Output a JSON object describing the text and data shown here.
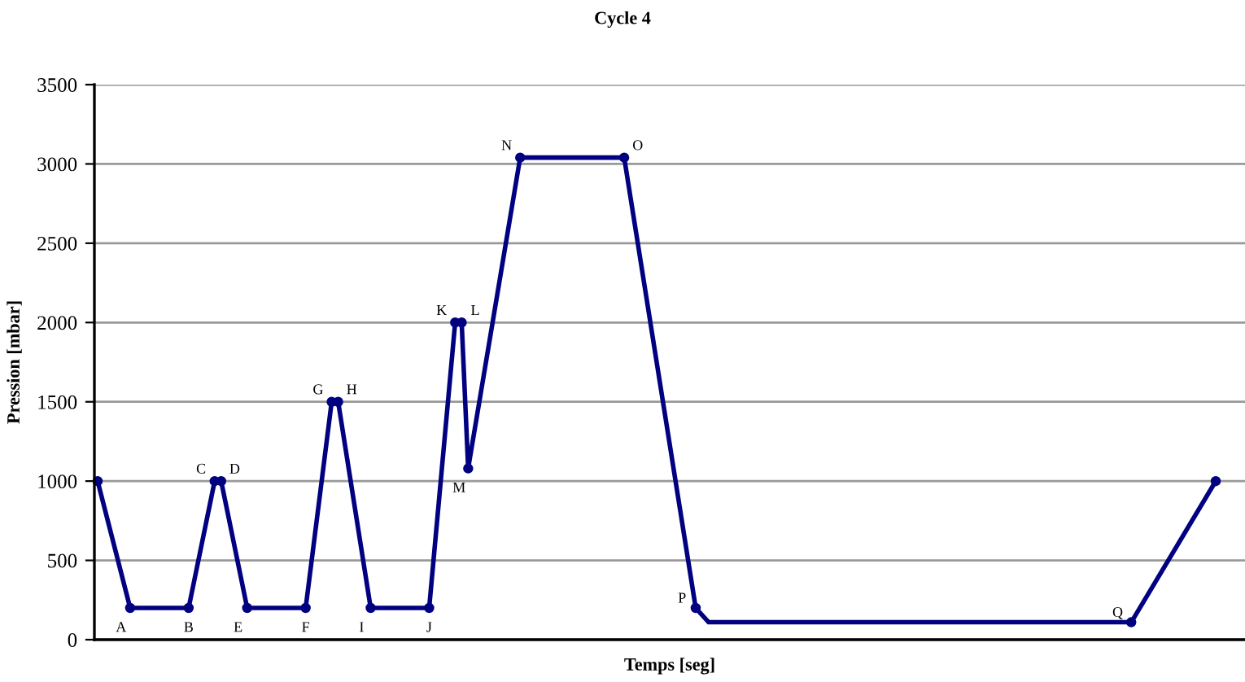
{
  "chart_data": {
    "type": "line",
    "title": "Cycle 4",
    "xlabel": "Temps [seg]",
    "ylabel": "Pression [mbar]",
    "categories": [
      null,
      null,
      null,
      null,
      null,
      null,
      null,
      null,
      null,
      null,
      null,
      null,
      null,
      null,
      null,
      null,
      null,
      null,
      null,
      null,
      null,
      null,
      null,
      null,
      null,
      null,
      null,
      null,
      null,
      null,
      null,
      null,
      null,
      null,
      null,
      null,
      null,
      null,
      null,
      null,
      null,
      null,
      null,
      null,
      null,
      null,
      null,
      null,
      null,
      null,
      null,
      null,
      null,
      null,
      null,
      null,
      null,
      null,
      null,
      null,
      null,
      null,
      null,
      null,
      null,
      null,
      null,
      null,
      null,
      null,
      null,
      null,
      null,
      null,
      null,
      null,
      null,
      null,
      null,
      null,
      null,
      null,
      null,
      null,
      null,
      null,
      null,
      null,
      null,
      null,
      null,
      null,
      null,
      null,
      null,
      null,
      null,
      null,
      null,
      null,
      null,
      null,
      null,
      null,
      null,
      null,
      null,
      null,
      null,
      null,
      null,
      null,
      null,
      null,
      null,
      null,
      null,
      null,
      null,
      null,
      null,
      null,
      null,
      null,
      null,
      null,
      null,
      null,
      null,
      null,
      null,
      null,
      null,
      null,
      null,
      null,
      null,
      null,
      null,
      null,
      null,
      null,
      null,
      null,
      null,
      null,
      null,
      null,
      null,
      null,
      null,
      null,
      null,
      null,
      null,
      null,
      null,
      null,
      null,
      null,
      null,
      null,
      null,
      null,
      null,
      null,
      null,
      null,
      null,
      null,
      null,
      null,
      null,
      null,
      null,
      null,
      null
    ],
    "series": [
      {
        "color": "#000080",
        "values": [
          1000,
          null,
          null,
          null,
          null,
          200,
          null,
          null,
          null,
          null,
          null,
          null,
          null,
          null,
          200,
          null,
          null,
          null,
          1000,
          1000,
          null,
          null,
          null,
          200,
          null,
          null,
          null,
          null,
          null,
          null,
          null,
          null,
          200,
          null,
          null,
          null,
          1500,
          1500,
          null,
          null,
          null,
          null,
          200,
          null,
          null,
          null,
          null,
          null,
          null,
          null,
          null,
          200,
          null,
          null,
          null,
          2000,
          2000,
          1080,
          null,
          null,
          null,
          null,
          null,
          null,
          null,
          3040,
          null,
          null,
          null,
          null,
          null,
          null,
          null,
          null,
          null,
          null,
          null,
          null,
          null,
          null,
          null,
          3040,
          null,
          null,
          null,
          null,
          null,
          null,
          null,
          null,
          null,
          null,
          200,
          null,
          110,
          null,
          null,
          null,
          null,
          null,
          null,
          null,
          null,
          null,
          null,
          null,
          null,
          null,
          null,
          null,
          null,
          null,
          null,
          null,
          null,
          null,
          null,
          null,
          null,
          null,
          null,
          null,
          null,
          null,
          null,
          null,
          null,
          null,
          null,
          null,
          null,
          null,
          null,
          null,
          null,
          null,
          null,
          null,
          null,
          null,
          null,
          null,
          null,
          null,
          null,
          null,
          null,
          null,
          null,
          null,
          null,
          null,
          null,
          null,
          null,
          null,
          null,
          null,
          null,
          110,
          null,
          null,
          null,
          null,
          null,
          null,
          null,
          null,
          null,
          null,
          null,
          null,
          1000,
          null,
          null,
          null,
          null
        ]
      }
    ],
    "ylim": [
      0,
      3500
    ],
    "yticks": [
      0,
      500,
      1000,
      1500,
      2000,
      2500,
      3000,
      3500
    ],
    "tick_labels": "y",
    "grid": "y",
    "marker": "circle",
    "line_style": "solid",
    "annotations": [
      {
        "text": "A",
        "y": 200
      },
      {
        "text": "B",
        "y": 200
      },
      "C",
      "D",
      {
        "text": "E",
        "y": 200
      },
      {
        "text": "F",
        "y": 200
      },
      "G",
      "H",
      {
        "text": "I",
        "y": 200
      },
      {
        "text": "J",
        "y": 200
      },
      "K",
      "L",
      {
        "text": "M",
        "y": 1080
      },
      "N",
      "O",
      "P",
      {
        "text": "Q",
        "y": 110
      }
    ]
  }
}
